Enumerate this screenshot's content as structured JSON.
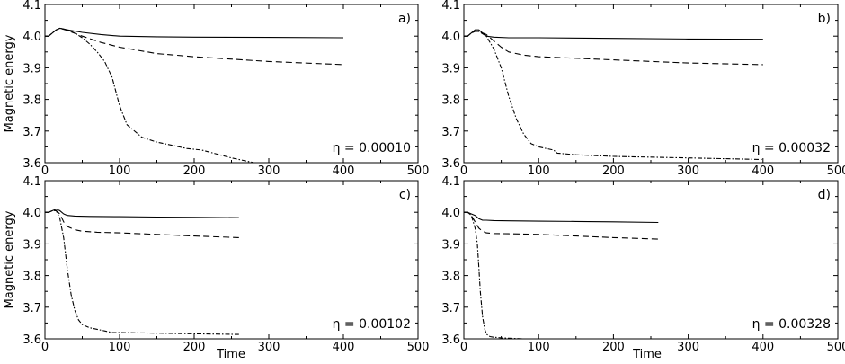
{
  "figure": {
    "ylabel": "Magnetic energy",
    "xlabel": "Time"
  },
  "chart_data": [
    {
      "type": "line",
      "panel_label": "a)",
      "annotation": "η = 0.00010",
      "xlim": [
        0,
        500
      ],
      "ylim": [
        3.6,
        4.1
      ],
      "xticks": [
        "0",
        "100",
        "200",
        "300",
        "400",
        "500"
      ],
      "yticks": [
        "3.6",
        "3.7",
        "3.8",
        "3.9",
        "4.0",
        "4.1"
      ],
      "series": [
        {
          "style": "solid",
          "x": [
            0,
            5,
            10,
            15,
            20,
            30,
            50,
            75,
            100,
            150,
            200,
            300,
            400
          ],
          "y": [
            4.0,
            4.0,
            4.01,
            4.02,
            4.025,
            4.02,
            4.012,
            4.005,
            4.0,
            3.998,
            3.997,
            3.996,
            3.995
          ]
        },
        {
          "style": "dashed",
          "x": [
            0,
            5,
            10,
            15,
            20,
            30,
            50,
            75,
            100,
            150,
            200,
            300,
            400
          ],
          "y": [
            4.0,
            4.0,
            4.01,
            4.02,
            4.025,
            4.018,
            4.0,
            3.98,
            3.965,
            3.945,
            3.935,
            3.92,
            3.91
          ]
        },
        {
          "style": "dashdot",
          "x": [
            0,
            5,
            10,
            15,
            20,
            30,
            40,
            50,
            60,
            70,
            80,
            90,
            100,
            110,
            130,
            150,
            170,
            190,
            210,
            250,
            280
          ],
          "y": [
            4.0,
            4.0,
            4.01,
            4.02,
            4.025,
            4.02,
            4.01,
            3.995,
            3.975,
            3.95,
            3.92,
            3.87,
            3.78,
            3.72,
            3.68,
            3.665,
            3.655,
            3.645,
            3.64,
            3.615,
            3.6
          ]
        }
      ]
    },
    {
      "type": "line",
      "panel_label": "b)",
      "annotation": "η = 0.00032",
      "xlim": [
        0,
        500
      ],
      "ylim": [
        3.6,
        4.1
      ],
      "xticks": [
        "0",
        "100",
        "200",
        "300",
        "400",
        "500"
      ],
      "yticks": [
        "3.6",
        "3.7",
        "3.8",
        "3.9",
        "4.0",
        "4.1"
      ],
      "series": [
        {
          "style": "solid",
          "x": [
            0,
            5,
            10,
            15,
            20,
            25,
            30,
            40,
            60,
            100,
            200,
            300,
            400
          ],
          "y": [
            4.0,
            4.0,
            4.01,
            4.02,
            4.02,
            4.01,
            4.0,
            3.997,
            3.995,
            3.995,
            3.993,
            3.991,
            3.99
          ]
        },
        {
          "style": "dashed",
          "x": [
            0,
            5,
            10,
            15,
            20,
            30,
            40,
            50,
            60,
            80,
            100,
            150,
            200,
            300,
            400
          ],
          "y": [
            4.0,
            4.0,
            4.01,
            4.015,
            4.015,
            4.005,
            3.985,
            3.965,
            3.95,
            3.94,
            3.935,
            3.93,
            3.925,
            3.915,
            3.91
          ]
        },
        {
          "style": "dashdot",
          "x": [
            0,
            5,
            10,
            15,
            20,
            30,
            40,
            50,
            60,
            70,
            80,
            90,
            100,
            110,
            120,
            125,
            150,
            200,
            300,
            400
          ],
          "y": [
            4.0,
            4.0,
            4.01,
            4.015,
            4.015,
            4.0,
            3.96,
            3.9,
            3.81,
            3.74,
            3.69,
            3.66,
            3.65,
            3.645,
            3.64,
            3.63,
            3.625,
            3.62,
            3.615,
            3.61
          ]
        }
      ]
    },
    {
      "type": "line",
      "panel_label": "c)",
      "annotation": "η = 0.00102",
      "xlim": [
        0,
        500
      ],
      "ylim": [
        3.6,
        4.1
      ],
      "xticks": [
        "0",
        "100",
        "200",
        "300",
        "400",
        "500"
      ],
      "yticks": [
        "3.6",
        "3.7",
        "3.8",
        "3.9",
        "4.0",
        "4.1"
      ],
      "series": [
        {
          "style": "solid",
          "x": [
            0,
            5,
            10,
            15,
            20,
            25,
            30,
            40,
            60,
            100,
            150,
            200,
            260
          ],
          "y": [
            4.0,
            4.0,
            4.005,
            4.01,
            4.005,
            3.995,
            3.99,
            3.988,
            3.987,
            3.986,
            3.985,
            3.984,
            3.983
          ]
        },
        {
          "style": "dashed",
          "x": [
            0,
            5,
            10,
            15,
            20,
            25,
            30,
            40,
            50,
            70,
            100,
            150,
            200,
            260
          ],
          "y": [
            4.0,
            4.0,
            4.005,
            4.005,
            3.995,
            3.97,
            3.955,
            3.945,
            3.94,
            3.937,
            3.935,
            3.93,
            3.925,
            3.92
          ]
        },
        {
          "style": "dashdot",
          "x": [
            0,
            5,
            10,
            15,
            20,
            25,
            30,
            35,
            40,
            45,
            50,
            60,
            70,
            80,
            90,
            100,
            150,
            200,
            260
          ],
          "y": [
            4.0,
            4.0,
            4.005,
            4.005,
            3.98,
            3.92,
            3.82,
            3.74,
            3.69,
            3.66,
            3.645,
            3.635,
            3.63,
            3.625,
            3.62,
            3.62,
            3.618,
            3.616,
            3.614
          ]
        }
      ]
    },
    {
      "type": "line",
      "panel_label": "d)",
      "annotation": "η = 0.00328",
      "xlim": [
        0,
        500
      ],
      "ylim": [
        3.6,
        4.1
      ],
      "xticks": [
        "0",
        "100",
        "200",
        "300",
        "400",
        "500"
      ],
      "yticks": [
        "3.6",
        "3.7",
        "3.8",
        "3.9",
        "4.0",
        "4.1"
      ],
      "series": [
        {
          "style": "solid",
          "x": [
            0,
            5,
            10,
            15,
            20,
            25,
            30,
            40,
            60,
            100,
            150,
            200,
            260
          ],
          "y": [
            4.0,
            4.0,
            3.995,
            3.99,
            3.98,
            3.975,
            3.975,
            3.974,
            3.973,
            3.972,
            3.971,
            3.97,
            3.968
          ]
        },
        {
          "style": "dashed",
          "x": [
            0,
            5,
            10,
            15,
            20,
            25,
            30,
            40,
            60,
            100,
            150,
            200,
            260
          ],
          "y": [
            4.0,
            4.0,
            3.99,
            3.97,
            3.95,
            3.94,
            3.935,
            3.933,
            3.932,
            3.93,
            3.925,
            3.92,
            3.915
          ]
        },
        {
          "style": "dashdot",
          "x": [
            0,
            5,
            10,
            15,
            18,
            20,
            22,
            25,
            28,
            30,
            35,
            40,
            50,
            60,
            80
          ],
          "y": [
            4.0,
            4.0,
            3.99,
            3.95,
            3.9,
            3.83,
            3.75,
            3.67,
            3.63,
            3.615,
            3.607,
            3.605,
            3.603,
            3.602,
            3.6
          ]
        }
      ]
    }
  ]
}
